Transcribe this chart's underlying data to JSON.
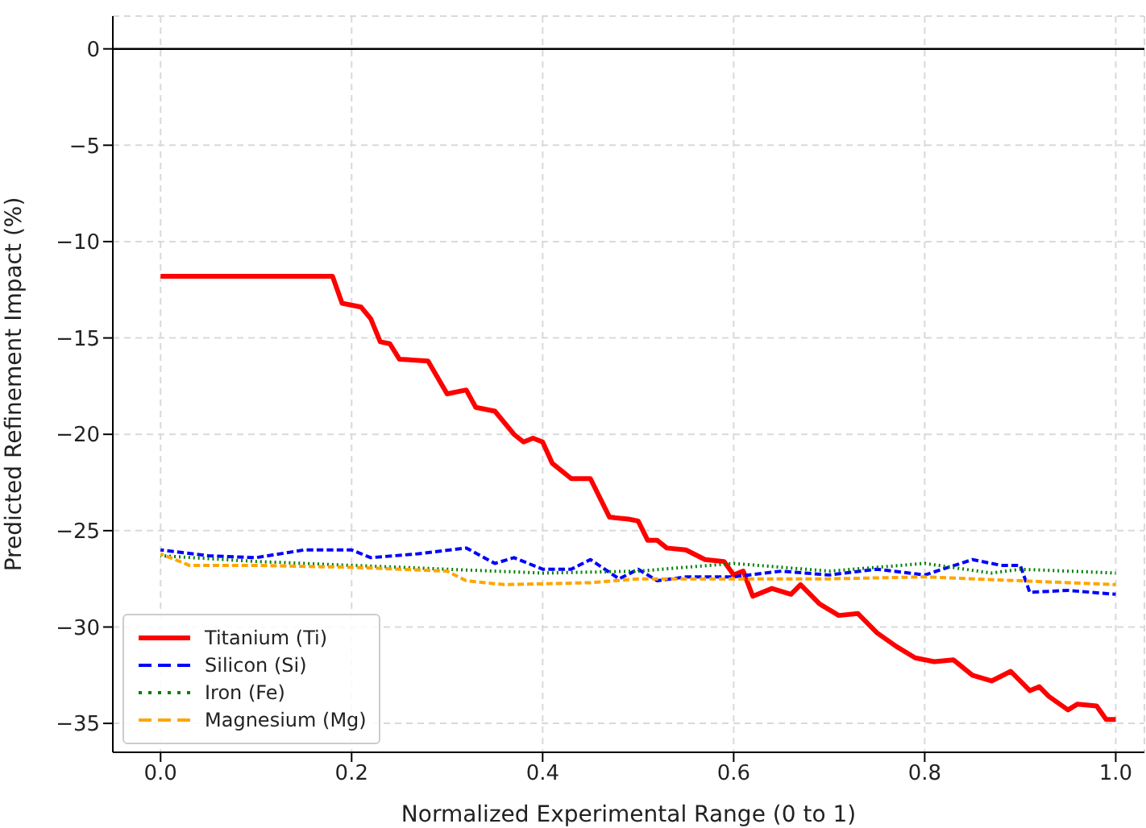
{
  "chart_data": {
    "type": "line",
    "xlabel": "Normalized Experimental Range (0 to 1)",
    "ylabel": "Predicted Refinement Impact (%)",
    "xlim": [
      -0.05,
      1.03
    ],
    "xticks": [
      {
        "value": 0,
        "label": "0.0"
      },
      0.2,
      0.4,
      0.6,
      0.8,
      {
        "value": 1,
        "label": "1.0"
      }
    ],
    "ylim": [
      -36.5,
      1.7
    ],
    "yticks": [
      0,
      -5,
      -10,
      -15,
      -20,
      -25,
      -30,
      -35
    ],
    "grid": true,
    "legend": "bottom left",
    "ref_lines": [
      {
        "axis": "y",
        "value": 0,
        "color": "#000000",
        "line_style": "solid"
      }
    ],
    "series": [
      {
        "name": "Titanium (Ti)",
        "color": "#ff0000",
        "line_style": "solid",
        "x": [
          0,
          0.18,
          0.19,
          0.21,
          0.22,
          0.23,
          0.24,
          0.25,
          0.28,
          0.3,
          0.32,
          0.33,
          0.35,
          0.37,
          0.38,
          0.39,
          0.4,
          0.41,
          0.43,
          0.45,
          0.47,
          0.49,
          0.5,
          0.51,
          0.52,
          0.53,
          0.55,
          0.57,
          0.59,
          0.6,
          0.61,
          0.62,
          0.64,
          0.66,
          0.67,
          0.69,
          0.71,
          0.73,
          0.75,
          0.77,
          0.79,
          0.81,
          0.83,
          0.85,
          0.87,
          0.89,
          0.91,
          0.92,
          0.93,
          0.95,
          0.96,
          0.98,
          0.99,
          1.0
        ],
        "values": [
          -11.8,
          -11.8,
          -13.2,
          -13.4,
          -14.0,
          -15.2,
          -15.3,
          -16.1,
          -16.2,
          -17.9,
          -17.7,
          -18.6,
          -18.8,
          -20.0,
          -20.4,
          -20.2,
          -20.4,
          -21.5,
          -22.3,
          -22.3,
          -24.3,
          -24.4,
          -24.5,
          -25.5,
          -25.5,
          -25.9,
          -26.0,
          -26.5,
          -26.6,
          -27.3,
          -27.1,
          -28.4,
          -28.0,
          -28.3,
          -27.8,
          -28.8,
          -29.4,
          -29.3,
          -30.3,
          -31.0,
          -31.6,
          -31.8,
          -31.7,
          -32.5,
          -32.8,
          -32.3,
          -33.3,
          -33.1,
          -33.6,
          -34.3,
          -34.0,
          -34.1,
          -34.8,
          -34.8
        ]
      },
      {
        "name": "Silicon (Si)",
        "color": "#0000ff",
        "line_style": "dashed",
        "x": [
          0,
          0.05,
          0.1,
          0.15,
          0.2,
          0.22,
          0.27,
          0.32,
          0.35,
          0.37,
          0.4,
          0.43,
          0.45,
          0.48,
          0.5,
          0.52,
          0.55,
          0.6,
          0.65,
          0.7,
          0.75,
          0.8,
          0.85,
          0.88,
          0.9,
          0.91,
          0.95,
          1.0
        ],
        "values": [
          -26.0,
          -26.3,
          -26.4,
          -26.0,
          -26.0,
          -26.4,
          -26.2,
          -25.9,
          -26.7,
          -26.4,
          -27.0,
          -27.0,
          -26.5,
          -27.5,
          -27.0,
          -27.6,
          -27.4,
          -27.4,
          -27.1,
          -27.3,
          -27.0,
          -27.3,
          -26.5,
          -26.8,
          -26.8,
          -28.2,
          -28.1,
          -28.3
        ]
      },
      {
        "name": "Iron (Fe)",
        "color": "#008000",
        "line_style": "dotted",
        "x": [
          0,
          0.1,
          0.2,
          0.3,
          0.4,
          0.5,
          0.55,
          0.6,
          0.65,
          0.7,
          0.8,
          0.87,
          0.9,
          1.0
        ],
        "values": [
          -26.3,
          -26.6,
          -26.8,
          -27.0,
          -27.2,
          -27.1,
          -26.9,
          -26.7,
          -26.9,
          -27.1,
          -26.7,
          -27.2,
          -27.0,
          -27.2
        ]
      },
      {
        "name": "Magnesium (Mg)",
        "color": "#ffa500",
        "line_style": "dashed",
        "x": [
          0,
          0.03,
          0.1,
          0.2,
          0.3,
          0.32,
          0.36,
          0.45,
          0.5,
          0.6,
          0.7,
          0.8,
          0.9,
          0.95,
          1.0
        ],
        "values": [
          -26.2,
          -26.8,
          -26.8,
          -26.9,
          -27.1,
          -27.6,
          -27.8,
          -27.7,
          -27.5,
          -27.5,
          -27.5,
          -27.4,
          -27.6,
          -27.7,
          -27.8
        ]
      }
    ]
  }
}
